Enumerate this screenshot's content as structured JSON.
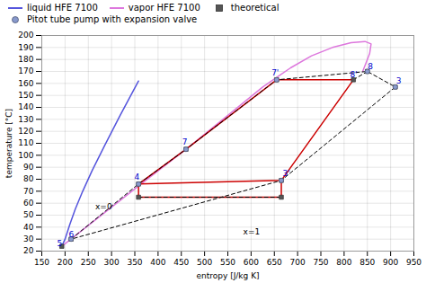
{
  "chart_data": {
    "type": "line",
    "xlabel": "entropy [J/kg K]",
    "ylabel": "temperature [°C]",
    "xlim": [
      150,
      950
    ],
    "ylim": [
      20,
      200
    ],
    "xticks": [
      150,
      200,
      250,
      300,
      350,
      400,
      450,
      500,
      550,
      600,
      650,
      700,
      750,
      800,
      850,
      900,
      950
    ],
    "yticks": [
      20,
      30,
      40,
      50,
      60,
      70,
      80,
      90,
      100,
      110,
      120,
      130,
      140,
      150,
      160,
      170,
      180,
      190,
      200
    ],
    "grid": true,
    "legend": "upper left",
    "series": [
      {
        "name": "liquid HFE 7100",
        "color": "#5555dd",
        "line_style": "solid",
        "x": [
          193,
          200,
          210,
          222,
          238,
          258,
          285,
          318,
          358
        ],
        "values": [
          24,
          30,
          42,
          55,
          70,
          87,
          108,
          133,
          162
        ]
      },
      {
        "name": "vapor HFE 7100",
        "color": "#dd77dd",
        "line_style": "solid",
        "x": [
          193,
          370,
          470,
          565,
          625,
          655,
          685,
          730,
          775,
          815,
          845,
          858,
          855,
          840
        ],
        "values": [
          24,
          78,
          108,
          138,
          157,
          165,
          173,
          183,
          190,
          194,
          195,
          193,
          185,
          170
        ]
      },
      {
        "color": "#cc0000",
        "line_style": "solid",
        "x": [
          358,
          460,
          655,
          820,
          665,
          358
        ],
        "values": [
          76,
          105,
          163,
          163,
          79,
          76
        ]
      },
      {
        "color": "#cc0000",
        "line_style": "solid",
        "x": [
          358,
          665
        ],
        "values": [
          65,
          65
        ]
      },
      {
        "color": "#cc0000",
        "line_style": "solid",
        "x": [
          358,
          358
        ],
        "values": [
          65,
          76
        ]
      },
      {
        "color": "#cc0000",
        "line_style": "solid",
        "x": [
          665,
          665
        ],
        "values": [
          65,
          79
        ]
      },
      {
        "color": "#000000",
        "line_style": "dashed",
        "x": [
          213,
          358,
          460,
          655,
          850,
          910,
          665,
          213
        ],
        "values": [
          30,
          76,
          105,
          163,
          170,
          157,
          79,
          30
        ]
      },
      {
        "color": "#000000",
        "line_style": "dashed",
        "x": [
          358,
          665
        ],
        "values": [
          65,
          65
        ]
      },
      {
        "color": "#000000",
        "line_style": "dashed",
        "x": [
          820,
          850
        ],
        "values": [
          163,
          170
        ]
      },
      {
        "name": "theoretical",
        "type": "scatter",
        "marker": "square",
        "color": "#555555",
        "x": [
          193,
          213,
          358,
          460,
          655,
          820,
          850,
          910,
          665,
          358,
          665
        ],
        "values": [
          24,
          30,
          76,
          105,
          163,
          163,
          170,
          157,
          79,
          65,
          65
        ]
      },
      {
        "name": "Pitot tube pump with expansion valve",
        "type": "scatter",
        "marker": "circle",
        "color": "#8899cc",
        "x": [
          213,
          358,
          460,
          655,
          850,
          910,
          665
        ],
        "values": [
          30,
          76,
          105,
          163,
          170,
          157,
          79
        ]
      }
    ],
    "annotations": [
      {
        "text": "5",
        "x": 183,
        "y": 24,
        "color": "#0000cc"
      },
      {
        "text": "6",
        "x": 208,
        "y": 32,
        "color": "#0000cc"
      },
      {
        "text": "4",
        "x": 349,
        "y": 80,
        "color": "#0000cc"
      },
      {
        "text": "7",
        "x": 452,
        "y": 109,
        "color": "#0000cc"
      },
      {
        "text": "7'",
        "x": 644,
        "y": 167,
        "color": "#0000cc"
      },
      {
        "text": "8'",
        "x": 813,
        "y": 165,
        "color": "#0000cc"
      },
      {
        "text": "8",
        "x": 851,
        "y": 172,
        "color": "#0000cc"
      },
      {
        "text": "3",
        "x": 912,
        "y": 160,
        "color": "#0000cc"
      },
      {
        "text": "3'",
        "x": 668,
        "y": 83,
        "color": "#0000cc"
      },
      {
        "text": "x=0",
        "x": 265,
        "y": 55,
        "color": "#000000"
      },
      {
        "text": "x=1",
        "x": 583,
        "y": 34,
        "color": "#000000"
      }
    ]
  }
}
